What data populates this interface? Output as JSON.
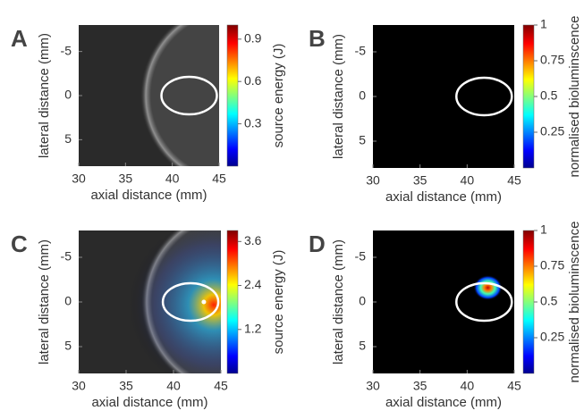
{
  "figure": {
    "panels": [
      {
        "label": "A",
        "xlabel": "axial distance (mm)",
        "ylabel": "lateral distance (mm)",
        "xlim": [
          30,
          45
        ],
        "xticks": [
          30,
          35,
          40,
          45
        ],
        "ylim": [
          -8,
          8
        ],
        "yticks": [
          -5,
          0,
          5
        ],
        "clabel": "source energy (J)",
        "clim": [
          0,
          1
        ],
        "cticks": [
          0.3,
          0.6,
          0.9
        ]
      },
      {
        "label": "B",
        "xlabel": "axial distance (mm)",
        "ylabel": "lateral distance (mm)",
        "xlim": [
          30,
          45
        ],
        "xticks": [
          30,
          35,
          40,
          45
        ],
        "ylim": [
          -8,
          8
        ],
        "yticks": [
          -5,
          0,
          5
        ],
        "clabel": "normalised bioluminscence",
        "clim": [
          0,
          1
        ],
        "cticks": [
          0.25,
          0.5,
          0.75,
          1
        ]
      },
      {
        "label": "C",
        "xlabel": "axial distance (mm)",
        "ylabel": "lateral distance (mm)",
        "xlim": [
          30,
          45
        ],
        "xticks": [
          30,
          35,
          40,
          45
        ],
        "ylim": [
          -8,
          8
        ],
        "yticks": [
          -5,
          0,
          5
        ],
        "clabel": "source energy (J)",
        "clim": [
          0,
          3.9
        ],
        "cticks": [
          1.2,
          2.4,
          3.6
        ]
      },
      {
        "label": "D",
        "xlabel": "axial distance (mm)",
        "ylabel": "lateral distance (mm)",
        "xlim": [
          30,
          45
        ],
        "xticks": [
          30,
          35,
          40,
          45
        ],
        "ylim": [
          -8,
          8
        ],
        "yticks": [
          -5,
          0,
          5
        ],
        "clabel": "normalised bioluminscence",
        "clim": [
          0,
          1
        ],
        "cticks": [
          0.25,
          0.5,
          0.75,
          1
        ]
      }
    ]
  }
}
